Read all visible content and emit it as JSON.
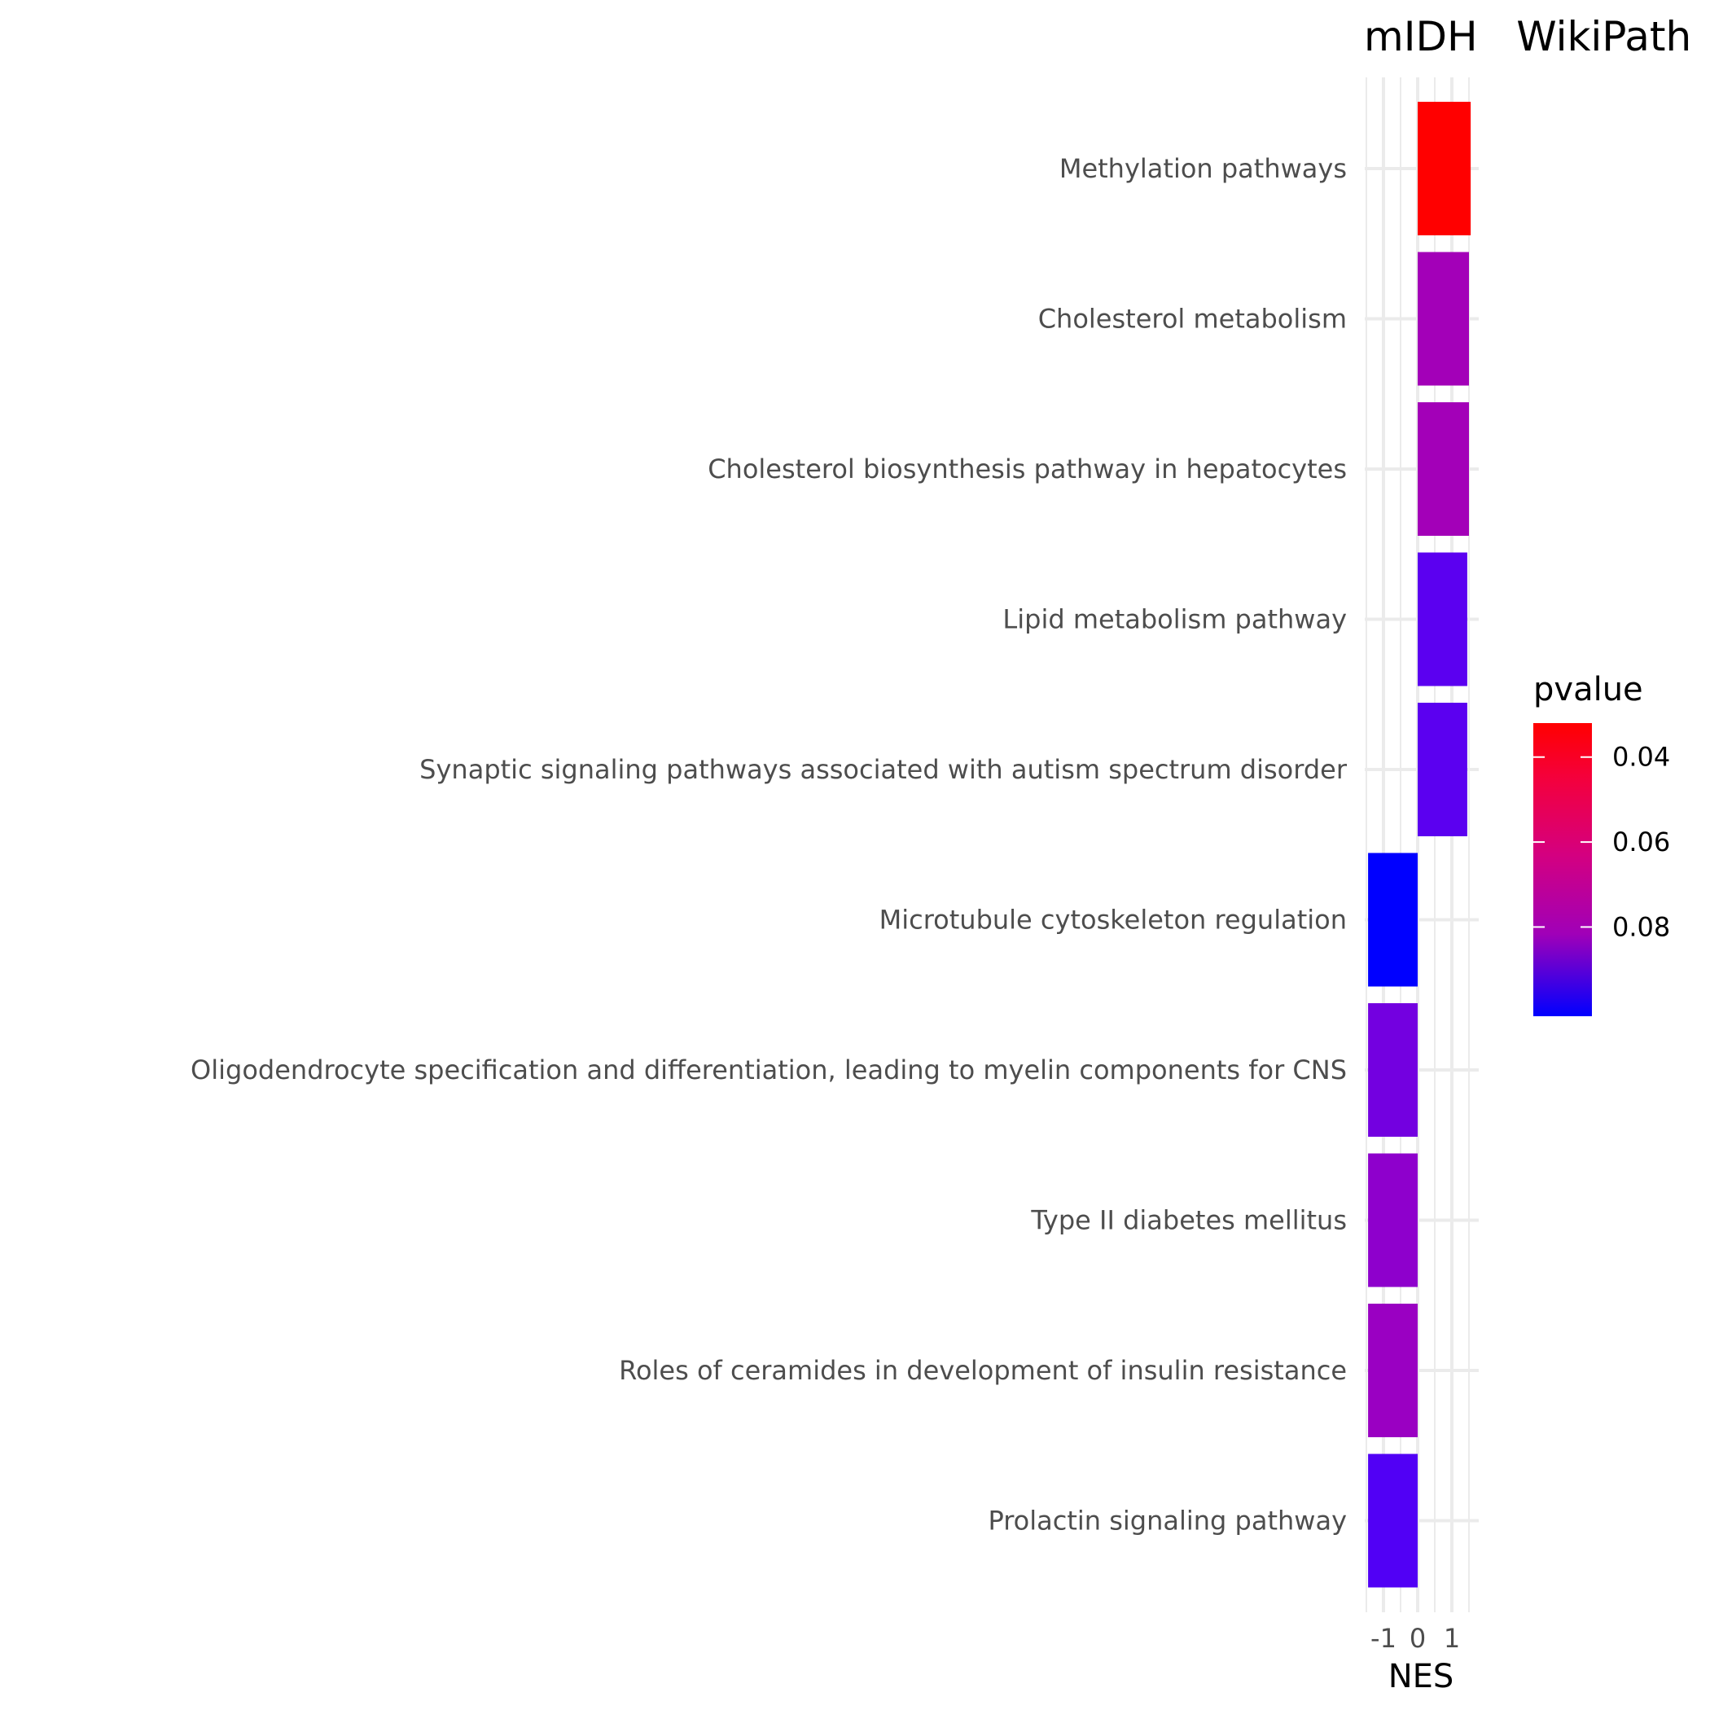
{
  "chart_data": {
    "type": "bar",
    "orientation": "horizontal",
    "title": "mIDH   WikiPath",
    "xlabel": "NES",
    "ylabel": "",
    "xlim": [
      -1.55,
      1.6
    ],
    "x_ticks": [
      -1,
      0,
      1
    ],
    "x_tick_labels": [
      "-1",
      "0",
      "1"
    ],
    "grid": true,
    "categories": [
      "Methylation pathways",
      "Cholesterol metabolism",
      "Cholesterol biosynthesis pathway in hepatocytes",
      "Lipid metabolism pathway",
      "Synaptic signaling pathways associated with autism spectrum disorder",
      "Microtubule cytoskeleton regulation",
      "Oligodendrocyte specification and differentiation, leading to myelin components for CNS",
      "Type II diabetes mellitus",
      "Roles of ceramides in development of insulin resistance",
      "Prolactin signaling pathway"
    ],
    "values": [
      1.55,
      1.5,
      1.5,
      1.45,
      1.45,
      -1.45,
      -1.45,
      -1.45,
      -1.45,
      -1.45
    ],
    "pvalues": [
      0.035,
      0.075,
      0.075,
      0.085,
      0.085,
      0.09,
      0.085,
      0.08,
      0.077,
      0.088
    ],
    "fill_colors": [
      "#ff0000",
      "#a300b8",
      "#a300b8",
      "#5b00f0",
      "#5b00f0",
      "#0000ff",
      "#7300e0",
      "#8e00cc",
      "#9a00c2",
      "#5100f5"
    ],
    "legend": {
      "title": "pvalue",
      "placement": "right",
      "ticks": [
        0.04,
        0.06,
        0.08
      ],
      "tick_labels": [
        "0.04",
        "0.06",
        "0.08"
      ],
      "range": [
        0.032,
        0.101
      ],
      "color_low_p": "#ff0000",
      "color_high_p": "#0000ff"
    }
  }
}
